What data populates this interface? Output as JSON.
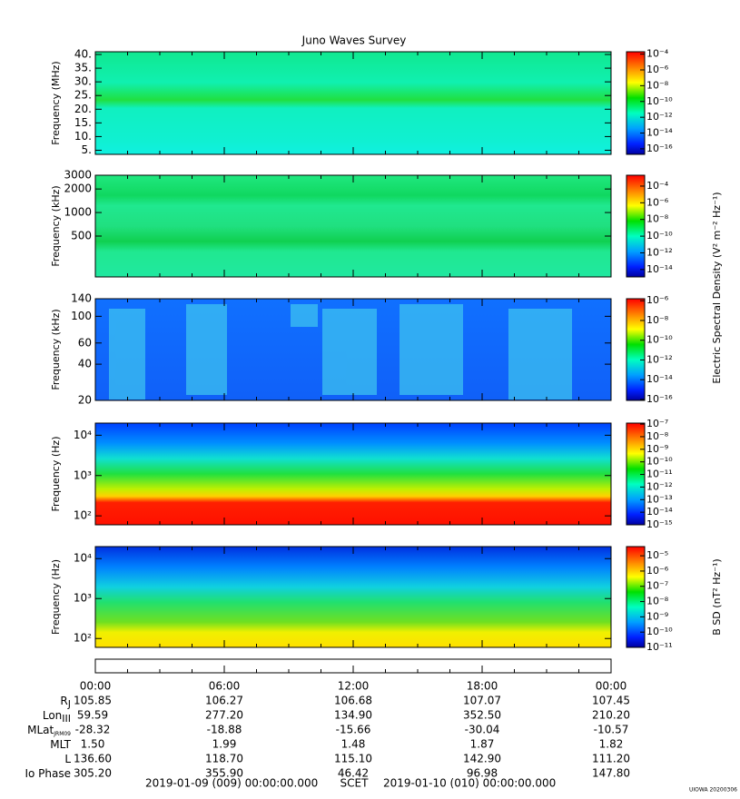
{
  "title": "Juno Waves Survey",
  "chart_data": [
    {
      "type": "spectrogram",
      "ylabel": "Frequency (MHz)",
      "yscale": "linear",
      "ylim": [
        3.5,
        41
      ],
      "yticks": [
        {
          "value": 5,
          "label": "5."
        },
        {
          "value": 10,
          "label": "10."
        },
        {
          "value": 15,
          "label": "15."
        },
        {
          "value": 20,
          "label": "20."
        },
        {
          "value": 25,
          "label": "25."
        },
        {
          "value": 30,
          "label": "30."
        },
        {
          "value": 35,
          "label": "35."
        },
        {
          "value": 40,
          "label": "40."
        }
      ],
      "colorbar": {
        "lim": [
          2e-17,
          0.0002
        ],
        "ticks": [
          {
            "value": 0.0001,
            "label": "10⁻⁴"
          },
          {
            "value": 1e-06,
            "label": "10⁻⁶"
          },
          {
            "value": 1e-08,
            "label": "10⁻⁸"
          },
          {
            "value": 1e-10,
            "label": "10⁻¹⁰"
          },
          {
            "value": 1e-12,
            "label": "10⁻¹²"
          },
          {
            "value": 1e-14,
            "label": "10⁻¹⁴"
          },
          {
            "value": 1e-16,
            "label": "10⁻¹⁶"
          }
        ]
      }
    },
    {
      "type": "spectrogram",
      "ylabel": "Frequency (kHz)",
      "yscale": "log",
      "ylim": [
        150,
        3000
      ],
      "yticks": [
        500,
        1000,
        2000,
        3000
      ],
      "colorbar": {
        "lim": [
          1.3e-15,
          0.002
        ],
        "ticks": [
          {
            "value": 0.0001,
            "label": "10⁻⁴"
          },
          {
            "value": 1e-06,
            "label": "10⁻⁶"
          },
          {
            "value": 1e-08,
            "label": "10⁻⁸"
          },
          {
            "value": 1e-10,
            "label": "10⁻¹⁰"
          },
          {
            "value": 1e-12,
            "label": "10⁻¹²"
          },
          {
            "value": 1e-14,
            "label": "10⁻¹⁴"
          }
        ]
      },
      "colorbar_label": "Electric Spectral Density (V² m⁻² Hz⁻¹)"
    },
    {
      "type": "spectrogram",
      "ylabel": "Frequency (kHz)",
      "yscale": "log",
      "ylim": [
        20,
        140
      ],
      "yticks": [
        20,
        40,
        60,
        100,
        140
      ],
      "colorbar": {
        "lim": [
          8e-17,
          1.6e-06
        ],
        "ticks": [
          {
            "value": 1e-06,
            "label": "10⁻⁶"
          },
          {
            "value": 1e-08,
            "label": "10⁻⁸"
          },
          {
            "value": 1e-10,
            "label": "10⁻¹⁰"
          },
          {
            "value": 1e-12,
            "label": "10⁻¹²"
          },
          {
            "value": 1e-14,
            "label": "10⁻¹⁴"
          },
          {
            "value": 1e-16,
            "label": "10⁻¹⁶"
          }
        ]
      }
    },
    {
      "type": "spectrogram",
      "ylabel": "Frequency (Hz)",
      "yscale": "log",
      "ylim": [
        60,
        20000
      ],
      "yticks": [
        {
          "value": 100,
          "label": "10²"
        },
        {
          "value": 1000,
          "label": "10³"
        },
        {
          "value": 10000,
          "label": "10⁴"
        }
      ],
      "colorbar": {
        "lim": [
          1e-15,
          1.2e-07
        ],
        "ticks": [
          {
            "value": 1e-07,
            "label": "10⁻⁷"
          },
          {
            "value": 1e-08,
            "label": "10⁻⁸"
          },
          {
            "value": 1e-09,
            "label": "10⁻⁹"
          },
          {
            "value": 1e-10,
            "label": "10⁻¹⁰"
          },
          {
            "value": 1e-11,
            "label": "10⁻¹¹"
          },
          {
            "value": 1e-12,
            "label": "10⁻¹²"
          },
          {
            "value": 1e-13,
            "label": "10⁻¹³"
          },
          {
            "value": 1e-14,
            "label": "10⁻¹⁴"
          },
          {
            "value": 1e-15,
            "label": "10⁻¹⁵"
          }
        ]
      }
    },
    {
      "type": "spectrogram",
      "ylabel": "Frequency (Hz)",
      "yscale": "log",
      "ylim": [
        60,
        20000
      ],
      "yticks": [
        {
          "value": 100,
          "label": "10²"
        },
        {
          "value": 1000,
          "label": "10³"
        },
        {
          "value": 10000,
          "label": "10⁴"
        }
      ],
      "colorbar": {
        "lim": [
          1e-11,
          4e-05
        ],
        "ticks": [
          {
            "value": 1e-05,
            "label": "10⁻⁵"
          },
          {
            "value": 1e-06,
            "label": "10⁻⁶"
          },
          {
            "value": 1e-07,
            "label": "10⁻⁷"
          },
          {
            "value": 1e-08,
            "label": "10⁻⁸"
          },
          {
            "value": 1e-09,
            "label": "10⁻⁹"
          },
          {
            "value": 1e-10,
            "label": "10⁻¹⁰"
          },
          {
            "value": 1e-11,
            "label": "10⁻¹¹"
          }
        ]
      },
      "colorbar_label": "B SD (nT² Hz⁻¹)"
    }
  ],
  "ephemeris": {
    "times": [
      "00:00",
      "06:00",
      "12:00",
      "18:00",
      "00:00"
    ],
    "rows": [
      {
        "label": "R",
        "sub": "J",
        "values": [
          "105.85",
          "106.27",
          "106.68",
          "107.07",
          "107.45"
        ]
      },
      {
        "label": "Lon",
        "sub": "III",
        "values": [
          "59.59",
          "277.20",
          "134.90",
          "352.50",
          "210.20"
        ]
      },
      {
        "label": "MLat",
        "sub": "JRM09",
        "values": [
          "-28.32",
          "-18.88",
          "-15.66",
          "-30.04",
          "-10.57"
        ]
      },
      {
        "label": "MLT",
        "values": [
          "1.50",
          "1.99",
          "1.48",
          "1.87",
          "1.82"
        ]
      },
      {
        "label": "L",
        "values": [
          "136.60",
          "118.70",
          "115.10",
          "142.90",
          "111.20"
        ]
      },
      {
        "label": "Io Phase",
        "values": [
          "305.20",
          "355.90",
          "46.42",
          "96.98",
          "147.80"
        ]
      }
    ]
  },
  "footer": {
    "start": "2019-01-09 (009) 00:00:00.000",
    "scet": "SCET",
    "end": "2019-01-10 (010) 00:00:00.000",
    "stamp": "UIOWA 20200306"
  }
}
